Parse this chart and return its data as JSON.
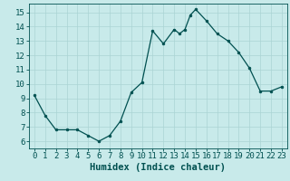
{
  "x": [
    0,
    1,
    2,
    3,
    4,
    5,
    6,
    7,
    8,
    9,
    10,
    11,
    12,
    13,
    13.5,
    14,
    14.5,
    15,
    16,
    17,
    18,
    19,
    20,
    21,
    22,
    23
  ],
  "y": [
    9.2,
    7.8,
    6.8,
    6.8,
    6.8,
    6.4,
    6.0,
    6.4,
    7.4,
    9.4,
    10.1,
    13.7,
    12.8,
    13.8,
    13.5,
    13.8,
    14.8,
    15.2,
    14.4,
    13.5,
    13.0,
    12.2,
    11.1,
    9.5,
    9.5,
    9.8
  ],
  "line_color": "#005050",
  "marker": "o",
  "marker_size": 2.0,
  "bg_color": "#c8eaea",
  "grid_color": "#aad4d4",
  "tick_color": "#005050",
  "xlabel": "Humidex (Indice chaleur)",
  "xlim": [
    -0.5,
    23.5
  ],
  "ylim": [
    5.5,
    15.6
  ],
  "yticks": [
    6,
    7,
    8,
    9,
    10,
    11,
    12,
    13,
    14,
    15
  ],
  "xticks": [
    0,
    1,
    2,
    3,
    4,
    5,
    6,
    7,
    8,
    9,
    10,
    11,
    12,
    13,
    14,
    15,
    16,
    17,
    18,
    19,
    20,
    21,
    22,
    23
  ],
  "font_size": 6.5,
  "label_font_size": 7.5
}
